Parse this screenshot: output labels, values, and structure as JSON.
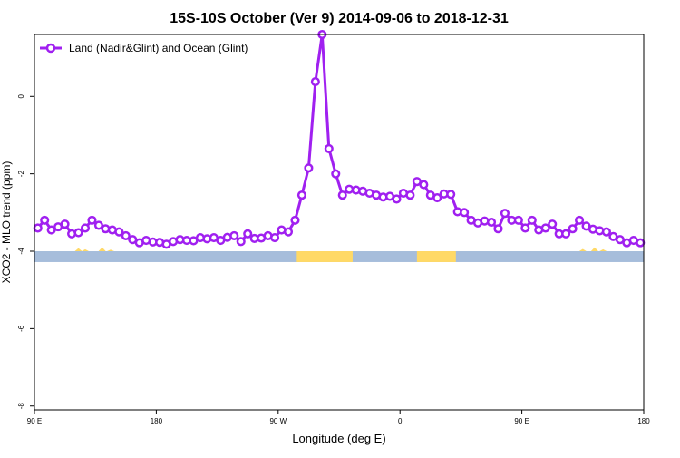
{
  "chart_data": {
    "type": "line",
    "title": "15S-10S October (Ver 9)   2014-09-06 to 2018-12-31",
    "xlabel": "Longitude (deg E)",
    "ylabel": "XCO2 - MLO trend (ppm)",
    "xlim": [
      90,
      450
    ],
    "ylim": [
      -8.1,
      1.6
    ],
    "x_ticks": [
      {
        "value": 90,
        "label": "90 E"
      },
      {
        "value": 162,
        "label": "180"
      },
      {
        "value": 234,
        "label": "90 W"
      },
      {
        "value": 306,
        "label": "0"
      },
      {
        "value": 378,
        "label": "90 E"
      },
      {
        "value": 450,
        "label": "180"
      }
    ],
    "y_ticks": [
      {
        "value": 0,
        "label": "0"
      },
      {
        "value": -2,
        "label": "-2"
      },
      {
        "value": -4,
        "label": "-4"
      },
      {
        "value": -6,
        "label": "-6"
      },
      {
        "value": -8,
        "label": "-8"
      }
    ],
    "legend": {
      "position": "top-left"
    },
    "series": [
      {
        "name": "Land (Nadir&Glint) and Ocean (Glint)",
        "color": "#a020f0",
        "marker": "open-circle",
        "x": [
          92,
          96,
          100,
          104,
          108,
          112,
          116,
          120,
          124,
          128,
          132,
          136,
          140,
          144,
          148,
          152,
          156,
          160,
          164,
          168,
          172,
          176,
          180,
          184,
          188,
          192,
          196,
          200,
          204,
          208,
          212,
          216,
          220,
          224,
          228,
          232,
          236,
          240,
          244,
          248,
          252,
          256,
          260,
          264,
          268,
          272,
          276,
          280,
          284,
          288,
          292,
          296,
          300,
          304,
          308,
          312,
          316,
          320,
          324,
          328,
          332,
          336,
          340,
          344,
          348,
          352,
          356,
          360,
          364,
          368,
          372,
          376,
          380,
          384,
          388,
          392,
          396,
          400,
          404,
          408,
          412,
          416,
          420,
          424,
          428,
          432,
          436,
          440,
          444,
          448
        ],
        "y": [
          -3.4,
          -3.2,
          -3.45,
          -3.37,
          -3.3,
          -3.55,
          -3.52,
          -3.4,
          -3.2,
          -3.33,
          -3.42,
          -3.45,
          -3.5,
          -3.6,
          -3.7,
          -3.78,
          -3.72,
          -3.76,
          -3.77,
          -3.82,
          -3.75,
          -3.7,
          -3.72,
          -3.73,
          -3.65,
          -3.68,
          -3.65,
          -3.72,
          -3.64,
          -3.6,
          -3.75,
          -3.55,
          -3.67,
          -3.66,
          -3.6,
          -3.65,
          -3.45,
          -3.5,
          -3.2,
          -2.55,
          -1.85,
          0.38,
          1.6,
          -1.35,
          -2.0,
          -2.55,
          -2.4,
          -2.42,
          -2.45,
          -2.5,
          -2.55,
          -2.6,
          -2.58,
          -2.65,
          -2.5,
          -2.55,
          -2.2,
          -2.28,
          -2.55,
          -2.62,
          -2.52,
          -2.53,
          -2.98,
          -3.0,
          -3.2,
          -3.27,
          -3.22,
          -3.25,
          -3.42,
          -3.02,
          -3.2,
          -3.2,
          -3.4,
          -3.2,
          -3.45,
          -3.4,
          -3.3,
          -3.55,
          -3.55,
          -3.42,
          -3.2,
          -3.35,
          -3.43,
          -3.47,
          -3.5,
          -3.62,
          -3.7,
          -3.78,
          -3.72,
          -3.78
        ]
      }
    ],
    "surface_strip": {
      "y_top": -4.0,
      "y_bottom": -4.28,
      "ocean_color": "#a6bddb",
      "land_color": "#ffd966",
      "land_ranges": [
        [
          245,
          278
        ],
        [
          316,
          339
        ]
      ],
      "land_spikes": [
        [
          116,
          -3.92
        ],
        [
          120,
          -3.95
        ],
        [
          130,
          -3.9
        ],
        [
          135,
          -3.96
        ],
        [
          414,
          -3.94
        ],
        [
          421,
          -3.9
        ],
        [
          426,
          -3.95
        ]
      ]
    }
  }
}
